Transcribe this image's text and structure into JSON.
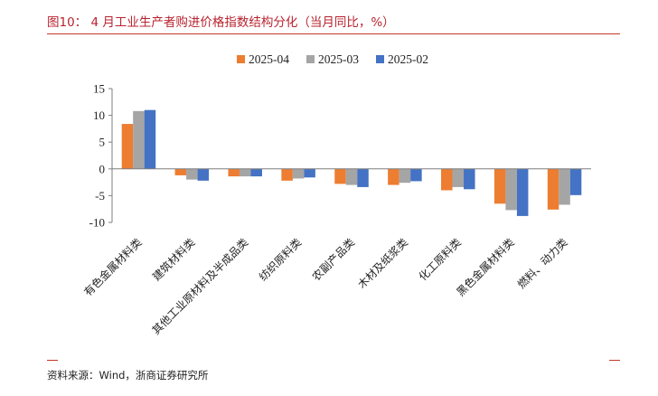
{
  "header": {
    "title": "图10： 4 月工业生产者购进价格指数结构分化（当月同比，%）"
  },
  "footer": {
    "source": "资料来源：Wind，浙商证券研究所"
  },
  "chart_data": {
    "type": "bar",
    "categories": [
      "有色金属材料类",
      "建筑材料类",
      "其他工业原材料及半成品类",
      "纺织原料类",
      "农副产品类",
      "木材及纸浆类",
      "化工原料类",
      "黑色金属材料类",
      "燃料、动力类"
    ],
    "series": [
      {
        "name": "2025-04",
        "color": "#ed7d31",
        "values": [
          8.4,
          -1.2,
          -1.4,
          -2.2,
          -2.8,
          -3.0,
          -4.0,
          -6.5,
          -7.6
        ]
      },
      {
        "name": "2025-03",
        "color": "#a5a5a5",
        "values": [
          10.8,
          -2.0,
          -1.4,
          -1.8,
          -3.0,
          -2.6,
          -3.4,
          -7.7,
          -6.7
        ]
      },
      {
        "name": "2025-02",
        "color": "#4472c4",
        "values": [
          11.0,
          -2.2,
          -1.4,
          -1.6,
          -3.4,
          -2.3,
          -3.8,
          -8.8,
          -4.9
        ]
      }
    ],
    "yticks": [
      15,
      10,
      5,
      0,
      -5,
      -10
    ],
    "ylim": [
      -10,
      15
    ],
    "legend_position": "top",
    "grid": false
  }
}
